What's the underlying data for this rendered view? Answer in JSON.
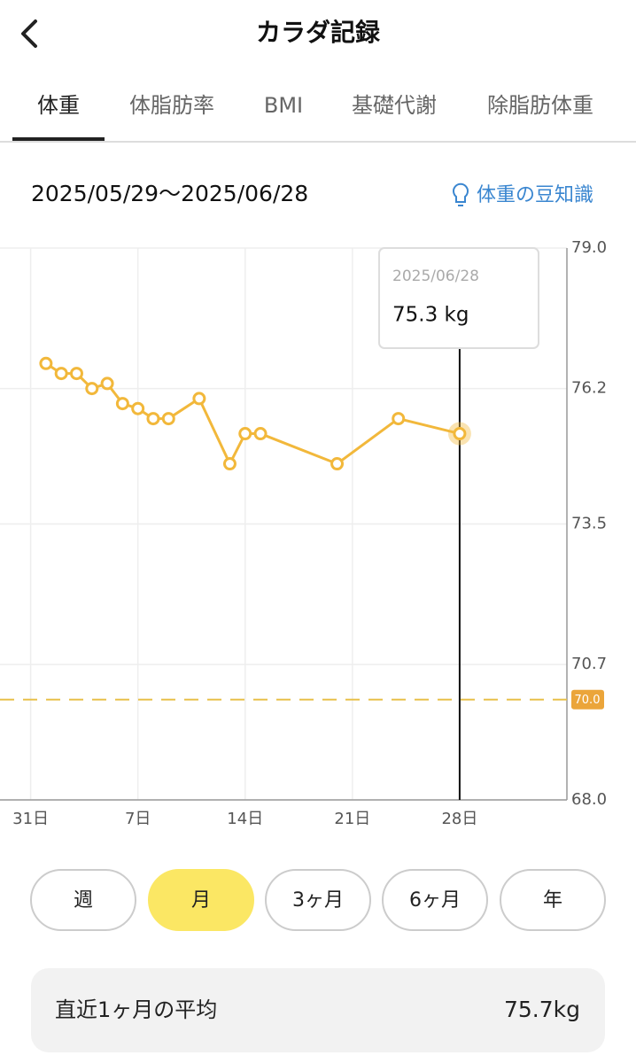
{
  "header": {
    "title": "カラダ記録"
  },
  "tabs": {
    "items": [
      "体重",
      "体脂肪率",
      "BMI",
      "基礎代謝",
      "除脂肪体重"
    ],
    "active": 0
  },
  "range": "2025/05/29〜2025/06/28",
  "tip_link": "体重の豆知識",
  "chart_data": {
    "type": "line",
    "x": [
      32,
      33,
      34,
      35,
      36,
      37,
      38,
      39,
      40,
      42,
      44,
      45,
      46,
      51,
      55,
      59
    ],
    "values": [
      76.7,
      76.5,
      76.5,
      76.2,
      76.3,
      75.9,
      75.8,
      75.6,
      75.6,
      76.0,
      74.7,
      75.3,
      75.3,
      74.7,
      75.6,
      75.3
    ],
    "color": "#f2b83b",
    "xlim": [
      29,
      66
    ],
    "xticks": [
      {
        "value": 31,
        "label": "31日"
      },
      {
        "value": 38,
        "label": "7日"
      },
      {
        "value": 45,
        "label": "14日"
      },
      {
        "value": 52,
        "label": "21日"
      },
      {
        "value": 59,
        "label": "28日"
      }
    ],
    "ylim": [
      68,
      79
    ],
    "yticks": [
      {
        "value": 68,
        "label": "68.0"
      },
      70.7,
      73.5,
      76.2,
      {
        "value": 79,
        "label": "79.0"
      }
    ],
    "grid": true,
    "target": {
      "value": 70,
      "label": "70.0"
    },
    "tooltip": {
      "x": 59,
      "date": "2025/06/28",
      "text": "75.3 kg"
    }
  },
  "periods": {
    "items": [
      "週",
      "月",
      "3ヶ月",
      "6ヶ月",
      "年"
    ],
    "active": 1
  },
  "summary": {
    "label": "直近1ヶ月の平均",
    "value": "75.7kg"
  }
}
